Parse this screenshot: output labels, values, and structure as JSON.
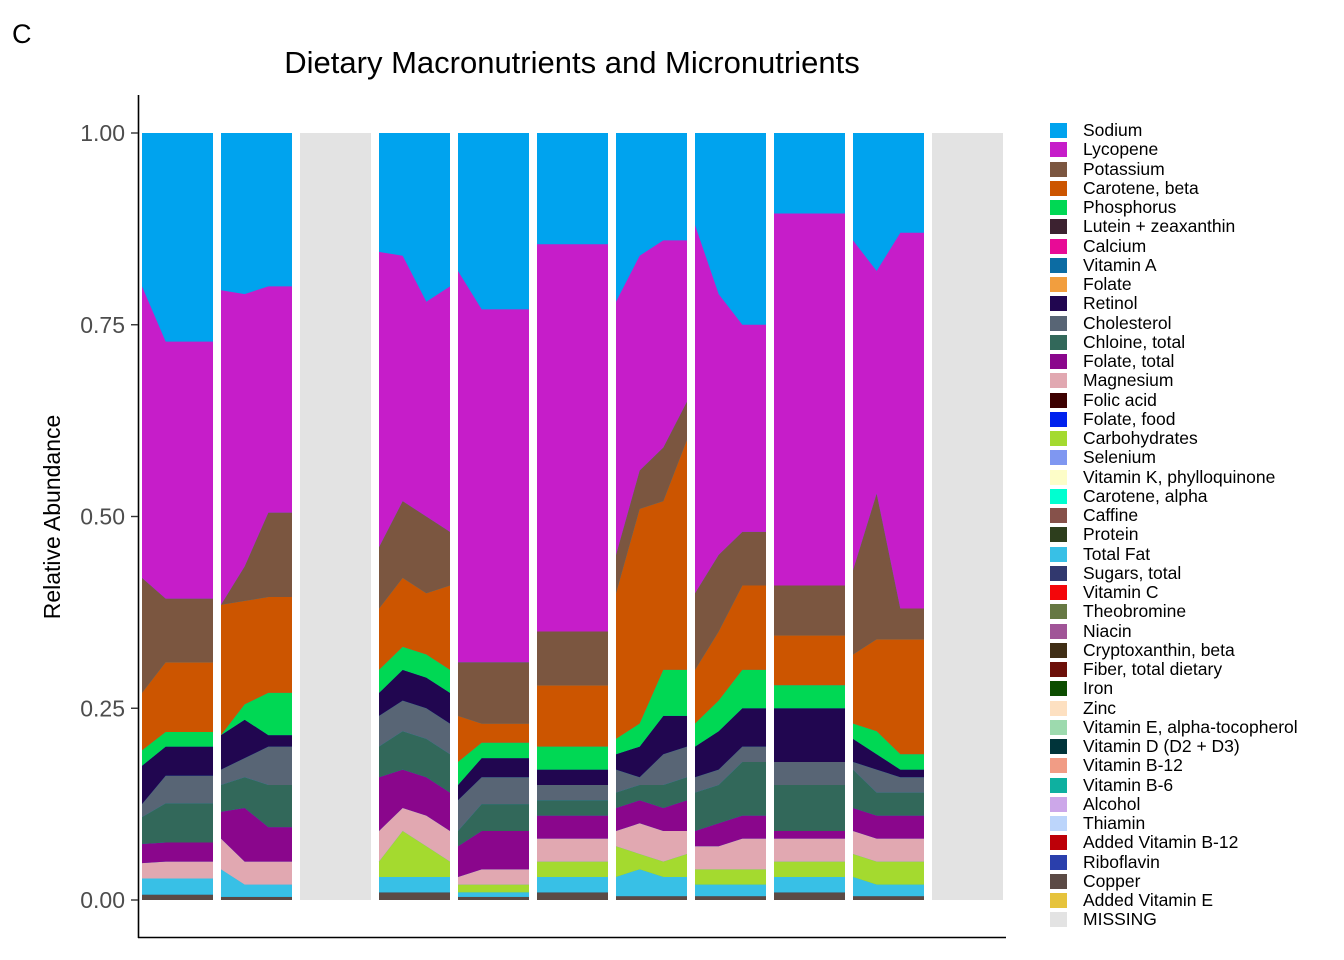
{
  "panel_label": "C",
  "chart_data": {
    "type": "area",
    "title": "Dietary Macronutrients and Micronutrients",
    "xlabel": "",
    "ylabel": "Relative Abundance",
    "ylim": [
      0,
      1
    ],
    "yticks": [
      "0.00",
      "0.25",
      "0.50",
      "0.75",
      "1.00"
    ],
    "legend_position": "right",
    "nutrients": [
      {
        "name": "Sodium",
        "color": "#00A3EE"
      },
      {
        "name": "Lycopene",
        "color": "#C61DC9"
      },
      {
        "name": "Potassium",
        "color": "#7B5640"
      },
      {
        "name": "Carotene, beta",
        "color": "#CC5500"
      },
      {
        "name": "Phosphorus",
        "color": "#00D854"
      },
      {
        "name": "Lutein + zeaxanthin",
        "color": "#3C2230"
      },
      {
        "name": "Calcium",
        "color": "#E80B96"
      },
      {
        "name": "Vitamin A",
        "color": "#0C6CA3"
      },
      {
        "name": "Folate",
        "color": "#F29E3E"
      },
      {
        "name": "Retinol",
        "color": "#210650"
      },
      {
        "name": "Cholesterol",
        "color": "#586575"
      },
      {
        "name": "Chloine, total",
        "color": "#32685A"
      },
      {
        "name": "Folate, total",
        "color": "#8A068C"
      },
      {
        "name": "Magnesium",
        "color": "#E1A8B1"
      },
      {
        "name": "Folic acid",
        "color": "#3D0000"
      },
      {
        "name": "Folate, food",
        "color": "#0022EE"
      },
      {
        "name": "Carbohydrates",
        "color": "#A4DA2F"
      },
      {
        "name": "Selenium",
        "color": "#7F97F1"
      },
      {
        "name": "Vitamin K, phylloquinone",
        "color": "#FDFDC8"
      },
      {
        "name": "Carotene, alpha",
        "color": "#00FFD0"
      },
      {
        "name": "Caffine",
        "color": "#86514A"
      },
      {
        "name": "Protein",
        "color": "#2D3E1D"
      },
      {
        "name": "Total Fat",
        "color": "#38C0E6"
      },
      {
        "name": "Sugars, total",
        "color": "#31386E"
      },
      {
        "name": "Vitamin C",
        "color": "#F4060A"
      },
      {
        "name": "Theobromine",
        "color": "#667843"
      },
      {
        "name": "Niacin",
        "color": "#A05497"
      },
      {
        "name": "Cryptoxanthin, beta",
        "color": "#402E15"
      },
      {
        "name": "Fiber, total dietary",
        "color": "#6C0F09"
      },
      {
        "name": "Iron",
        "color": "#0C4D00"
      },
      {
        "name": "Zinc",
        "color": "#FDE0C1"
      },
      {
        "name": "Vitamin E, alpha-tocopherol",
        "color": "#9DDAAE"
      },
      {
        "name": "Vitamin D (D2 + D3)",
        "color": "#00343A"
      },
      {
        "name": "Vitamin B-12",
        "color": "#F19C85"
      },
      {
        "name": "Vitamin B-6",
        "color": "#0EB0A0"
      },
      {
        "name": "Alcohol",
        "color": "#CCA7E9"
      },
      {
        "name": "Thiamin",
        "color": "#BCD5FB"
      },
      {
        "name": "Added Vitamin B-12",
        "color": "#BD0008"
      },
      {
        "name": "Riboflavin",
        "color": "#2A3FAC"
      },
      {
        "name": "Copper",
        "color": "#5B4A45"
      },
      {
        "name": "Added Vitamin E",
        "color": "#E6C33C"
      },
      {
        "name": "MISSING",
        "color": "#E3E3E3"
      }
    ],
    "groups": [
      {
        "status": "data",
        "bounds": [
          [
            0.007,
            0.028,
            0.028,
            0.048,
            0.073,
            0.108,
            0.125,
            0.175,
            0.195,
            0.27,
            0.42,
            0.8
          ],
          [
            0.007,
            0.028,
            0.028,
            0.05,
            0.075,
            0.126,
            0.162,
            0.2,
            0.219,
            0.31,
            0.393,
            0.728
          ],
          [
            0.007,
            0.028,
            0.028,
            0.05,
            0.075,
            0.126,
            0.162,
            0.2,
            0.219,
            0.31,
            0.393,
            0.728
          ],
          [
            0.007,
            0.028,
            0.028,
            0.05,
            0.075,
            0.126,
            0.162,
            0.2,
            0.219,
            0.31,
            0.393,
            0.728
          ]
        ]
      },
      {
        "status": "data",
        "bounds": [
          [
            0.004,
            0.04,
            0.04,
            0.08,
            0.115,
            0.15,
            0.17,
            0.215,
            0.215,
            0.385,
            0.385,
            0.795
          ],
          [
            0.004,
            0.02,
            0.02,
            0.05,
            0.12,
            0.16,
            0.185,
            0.235,
            0.255,
            0.39,
            0.435,
            0.79
          ],
          [
            0.004,
            0.02,
            0.02,
            0.05,
            0.095,
            0.15,
            0.2,
            0.215,
            0.27,
            0.395,
            0.505,
            0.8
          ],
          [
            0.004,
            0.02,
            0.02,
            0.05,
            0.095,
            0.15,
            0.2,
            0.215,
            0.27,
            0.395,
            0.505,
            0.8
          ]
        ]
      },
      {
        "status": "missing",
        "bounds": []
      },
      {
        "status": "data",
        "bounds": [
          [
            0.01,
            0.03,
            0.05,
            0.09,
            0.16,
            0.2,
            0.24,
            0.27,
            0.3,
            0.38,
            0.46,
            0.845
          ],
          [
            0.01,
            0.03,
            0.09,
            0.12,
            0.17,
            0.22,
            0.26,
            0.3,
            0.33,
            0.42,
            0.52,
            0.84
          ],
          [
            0.01,
            0.03,
            0.07,
            0.11,
            0.16,
            0.21,
            0.25,
            0.29,
            0.32,
            0.4,
            0.5,
            0.78
          ],
          [
            0.01,
            0.03,
            0.05,
            0.09,
            0.14,
            0.19,
            0.23,
            0.27,
            0.3,
            0.41,
            0.48,
            0.8
          ]
        ]
      },
      {
        "status": "data",
        "bounds": [
          [
            0.004,
            0.01,
            0.02,
            0.03,
            0.07,
            0.09,
            0.13,
            0.15,
            0.18,
            0.24,
            0.31,
            0.82
          ],
          [
            0.004,
            0.01,
            0.02,
            0.04,
            0.09,
            0.125,
            0.16,
            0.185,
            0.205,
            0.23,
            0.31,
            0.77
          ],
          [
            0.004,
            0.01,
            0.02,
            0.04,
            0.09,
            0.125,
            0.16,
            0.185,
            0.205,
            0.23,
            0.31,
            0.77
          ],
          [
            0.004,
            0.01,
            0.02,
            0.04,
            0.09,
            0.125,
            0.16,
            0.185,
            0.205,
            0.23,
            0.31,
            0.77
          ]
        ]
      },
      {
        "status": "data",
        "bounds": [
          [
            0.01,
            0.03,
            0.05,
            0.08,
            0.11,
            0.13,
            0.15,
            0.17,
            0.2,
            0.28,
            0.35,
            0.855
          ],
          [
            0.01,
            0.03,
            0.05,
            0.08,
            0.11,
            0.13,
            0.15,
            0.17,
            0.2,
            0.28,
            0.35,
            0.855
          ],
          [
            0.01,
            0.03,
            0.05,
            0.08,
            0.11,
            0.13,
            0.15,
            0.17,
            0.2,
            0.28,
            0.35,
            0.855
          ],
          [
            0.01,
            0.03,
            0.05,
            0.08,
            0.11,
            0.13,
            0.15,
            0.17,
            0.2,
            0.28,
            0.35,
            0.855
          ]
        ]
      },
      {
        "status": "data",
        "bounds": [
          [
            0.005,
            0.03,
            0.07,
            0.09,
            0.12,
            0.14,
            0.17,
            0.19,
            0.21,
            0.4,
            0.45,
            0.78
          ],
          [
            0.005,
            0.04,
            0.06,
            0.1,
            0.13,
            0.15,
            0.16,
            0.2,
            0.23,
            0.51,
            0.56,
            0.84
          ],
          [
            0.005,
            0.03,
            0.05,
            0.09,
            0.12,
            0.15,
            0.19,
            0.24,
            0.3,
            0.52,
            0.59,
            0.86
          ],
          [
            0.005,
            0.03,
            0.06,
            0.09,
            0.13,
            0.16,
            0.2,
            0.24,
            0.3,
            0.6,
            0.65,
            0.86
          ]
        ]
      },
      {
        "status": "data",
        "bounds": [
          [
            0.005,
            0.02,
            0.04,
            0.07,
            0.09,
            0.14,
            0.16,
            0.2,
            0.23,
            0.3,
            0.4,
            0.88
          ],
          [
            0.005,
            0.02,
            0.04,
            0.07,
            0.1,
            0.15,
            0.17,
            0.22,
            0.26,
            0.35,
            0.45,
            0.79
          ],
          [
            0.005,
            0.02,
            0.04,
            0.08,
            0.11,
            0.18,
            0.2,
            0.25,
            0.3,
            0.41,
            0.48,
            0.75
          ],
          [
            0.005,
            0.02,
            0.04,
            0.08,
            0.11,
            0.18,
            0.2,
            0.25,
            0.3,
            0.41,
            0.48,
            0.75
          ]
        ]
      },
      {
        "status": "data",
        "bounds": [
          [
            0.01,
            0.03,
            0.05,
            0.08,
            0.09,
            0.15,
            0.18,
            0.25,
            0.28,
            0.345,
            0.41,
            0.895
          ],
          [
            0.01,
            0.03,
            0.05,
            0.08,
            0.09,
            0.15,
            0.18,
            0.25,
            0.28,
            0.345,
            0.41,
            0.895
          ],
          [
            0.01,
            0.03,
            0.05,
            0.08,
            0.09,
            0.15,
            0.18,
            0.25,
            0.28,
            0.345,
            0.41,
            0.895
          ],
          [
            0.01,
            0.03,
            0.05,
            0.08,
            0.09,
            0.15,
            0.18,
            0.25,
            0.28,
            0.345,
            0.41,
            0.895
          ]
        ]
      },
      {
        "status": "data",
        "bounds": [
          [
            0.005,
            0.03,
            0.06,
            0.09,
            0.12,
            0.17,
            0.18,
            0.21,
            0.23,
            0.32,
            0.43,
            0.86
          ],
          [
            0.005,
            0.02,
            0.05,
            0.08,
            0.11,
            0.14,
            0.17,
            0.19,
            0.22,
            0.34,
            0.53,
            0.82
          ],
          [
            0.005,
            0.02,
            0.05,
            0.08,
            0.11,
            0.14,
            0.16,
            0.17,
            0.19,
            0.34,
            0.38,
            0.87
          ],
          [
            0.005,
            0.02,
            0.05,
            0.08,
            0.11,
            0.14,
            0.16,
            0.17,
            0.19,
            0.34,
            0.38,
            0.87
          ]
        ]
      },
      {
        "status": "missing",
        "bounds": []
      }
    ]
  }
}
